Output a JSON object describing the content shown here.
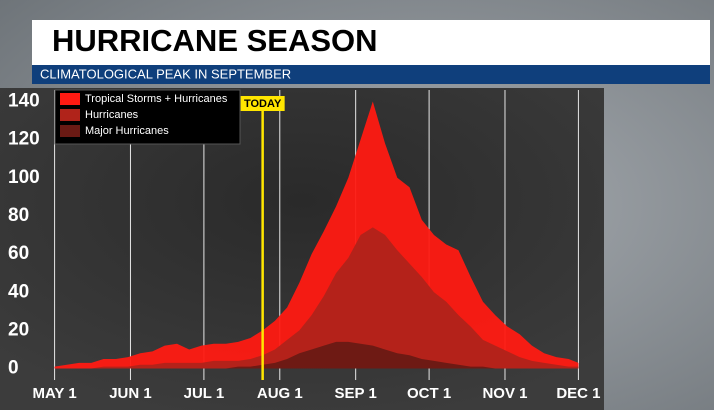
{
  "chart_data": {
    "type": "area",
    "title": "HURRICANE SEASON",
    "subtitle": "CLIMATOLOGICAL PEAK IN SEPTEMBER",
    "x": [
      0,
      5,
      10,
      15,
      20,
      25,
      30,
      35,
      40,
      45,
      50,
      55,
      60,
      65,
      70,
      75,
      80,
      85,
      90,
      95,
      100,
      105,
      110,
      115,
      120,
      125,
      130,
      135,
      140,
      145,
      150,
      155,
      160,
      165,
      170,
      175,
      180,
      185,
      190,
      195,
      200,
      205,
      210,
      214
    ],
    "series": [
      {
        "name": "Tropical Storms + Hurricanes",
        "color": "#ff1a12",
        "values": [
          1,
          2,
          3,
          3,
          5,
          5,
          6,
          8,
          9,
          12,
          13,
          10,
          12,
          13,
          13,
          14,
          16,
          20,
          25,
          32,
          45,
          60,
          72,
          85,
          100,
          120,
          140,
          118,
          100,
          95,
          78,
          70,
          65,
          62,
          48,
          35,
          28,
          22,
          18,
          12,
          8,
          6,
          5,
          3
        ]
      },
      {
        "name": "Hurricanes",
        "color": "#b0231a",
        "values": [
          0,
          0,
          0,
          0,
          1,
          1,
          1,
          2,
          2,
          3,
          3,
          3,
          3,
          4,
          4,
          4,
          5,
          7,
          10,
          15,
          20,
          28,
          38,
          50,
          58,
          70,
          74,
          70,
          62,
          55,
          48,
          40,
          35,
          28,
          22,
          15,
          12,
          9,
          6,
          4,
          3,
          2,
          1,
          1
        ]
      },
      {
        "name": "Major Hurricanes",
        "color": "#6a1a14",
        "values": [
          0,
          0,
          0,
          0,
          0,
          0,
          0,
          0,
          0,
          0,
          0,
          0,
          0,
          0,
          0,
          1,
          1,
          2,
          3,
          5,
          8,
          10,
          12,
          14,
          14,
          13,
          12,
          10,
          8,
          7,
          5,
          4,
          3,
          2,
          1,
          1,
          0,
          0,
          0,
          0,
          0,
          0,
          0,
          0
        ]
      }
    ],
    "xlim": [
      -8,
      222
    ],
    "xticks": [
      {
        "value": 0,
        "label": "MAY 1"
      },
      {
        "value": 31,
        "label": "JUN 1"
      },
      {
        "value": 61,
        "label": "JUL 1"
      },
      {
        "value": 92,
        "label": "AUG 1"
      },
      {
        "value": 123,
        "label": "SEP 1"
      },
      {
        "value": 153,
        "label": "OCT 1"
      },
      {
        "value": 184,
        "label": "NOV 1"
      },
      {
        "value": 214,
        "label": "DEC 1"
      }
    ],
    "ylim": [
      -6,
      146
    ],
    "yticks": [
      0,
      20,
      40,
      60,
      80,
      100,
      120,
      140
    ],
    "today": {
      "value": 85,
      "label": "TODAY"
    },
    "grid": true,
    "legend": "upper left"
  }
}
